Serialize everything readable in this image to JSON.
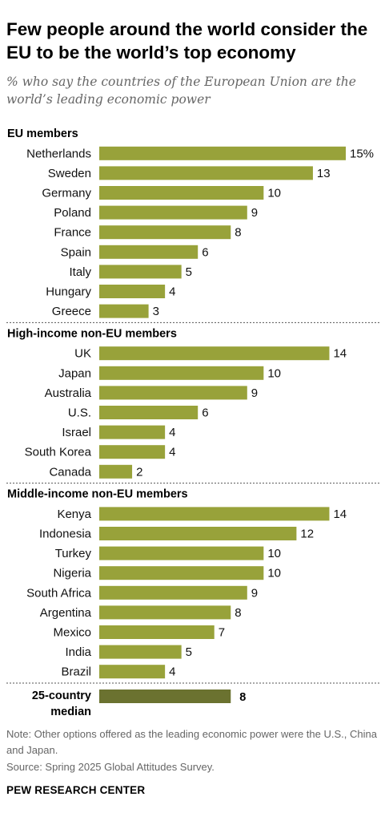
{
  "title": "Few people around the world consider the EU to be the world’s top economy",
  "subtitle": "% who say the countries of the European Union are the world’s leading economic power",
  "note": "Note: Other options offered as the leading economic power were the U.S., China and Japan.",
  "source": "Source: Spring 2025 Global Attitudes Survey.",
  "logo": "PEW RESEARCH CENTER",
  "colors": {
    "bar": "#98a23a",
    "median_bar": "#6b7230",
    "divider": "#555555"
  },
  "chart_data": {
    "type": "bar",
    "orientation": "horizontal",
    "value_unit_first_label": "%",
    "groups": [
      {
        "name": "EU members",
        "categories": [
          "Netherlands",
          "Sweden",
          "Germany",
          "Poland",
          "France",
          "Spain",
          "Italy",
          "Hungary",
          "Greece"
        ],
        "values": [
          15,
          13,
          10,
          9,
          8,
          6,
          5,
          4,
          3
        ]
      },
      {
        "name": "High-income non-EU members",
        "categories": [
          "UK",
          "Japan",
          "Australia",
          "U.S.",
          "Israel",
          "South Korea",
          "Canada"
        ],
        "values": [
          14,
          10,
          9,
          6,
          4,
          4,
          2
        ]
      },
      {
        "name": "Middle-income non-EU members",
        "categories": [
          "Kenya",
          "Indonesia",
          "Turkey",
          "Nigeria",
          "South Africa",
          "Argentina",
          "Mexico",
          "India",
          "Brazil"
        ],
        "values": [
          14,
          12,
          10,
          10,
          9,
          8,
          7,
          5,
          4
        ]
      }
    ],
    "median": {
      "label_lines": [
        "25-country",
        "median"
      ],
      "value": 8
    },
    "xlim": [
      0,
      15
    ]
  }
}
